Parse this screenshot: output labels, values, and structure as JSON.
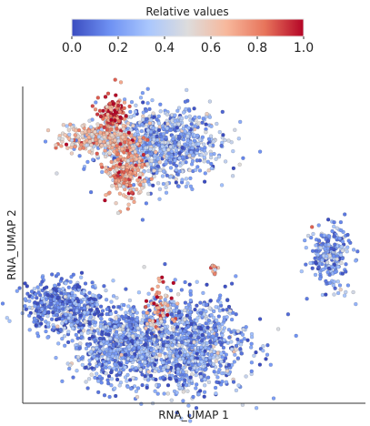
{
  "chart_data": {
    "type": "scatter",
    "title": "",
    "xlabel": "RNA_UMAP 1",
    "ylabel": "RNA_UMAP 2",
    "xticks": [],
    "yticks": [],
    "grid": false,
    "colorbar": {
      "title": "Relative values",
      "orientation": "horizontal",
      "placement": "top-center",
      "colormap": "coolwarm",
      "stops": [
        "#3b4cc0",
        "#6f92f3",
        "#aac7fd",
        "#dddcdc",
        "#f7b89c",
        "#e7745b",
        "#b40426"
      ],
      "range": [
        0.0,
        1.0
      ],
      "ticks": [
        0.0,
        0.2,
        0.4,
        0.6,
        0.8,
        1.0
      ],
      "tick_labels": [
        "0.0",
        "0.2",
        "0.4",
        "0.6",
        "0.8",
        "1.0"
      ]
    },
    "axis_range": {
      "x": [
        0,
        100
      ],
      "y": [
        0,
        100
      ]
    },
    "clusters": [
      {
        "cx": 40,
        "cy": 82,
        "sx": 9,
        "sy": 6,
        "value_mean": 0.25,
        "n": 900
      },
      {
        "cx": 22,
        "cy": 84,
        "sx": 5,
        "sy": 2,
        "value_mean": 0.6,
        "n": 300
      },
      {
        "cx": 30,
        "cy": 74,
        "sx": 3,
        "sy": 5,
        "value_mean": 0.7,
        "n": 250
      },
      {
        "cx": 26,
        "cy": 92,
        "sx": 2,
        "sy": 3,
        "value_mean": 0.85,
        "n": 110
      },
      {
        "cx": 12,
        "cy": 30,
        "sx": 6,
        "sy": 4,
        "value_mean": 0.15,
        "n": 500
      },
      {
        "cx": 28,
        "cy": 18,
        "sx": 7,
        "sy": 6,
        "value_mean": 0.2,
        "n": 700
      },
      {
        "cx": 48,
        "cy": 18,
        "sx": 9,
        "sy": 8,
        "value_mean": 0.22,
        "n": 1000
      },
      {
        "cx": 40,
        "cy": 30,
        "sx": 2,
        "sy": 4,
        "value_mean": 0.75,
        "n": 60
      },
      {
        "cx": 90,
        "cy": 46,
        "sx": 3,
        "sy": 5,
        "value_mean": 0.22,
        "n": 250
      },
      {
        "cx": 56,
        "cy": 42,
        "sx": 0.6,
        "sy": 0.8,
        "value_mean": 0.6,
        "n": 15
      }
    ]
  }
}
